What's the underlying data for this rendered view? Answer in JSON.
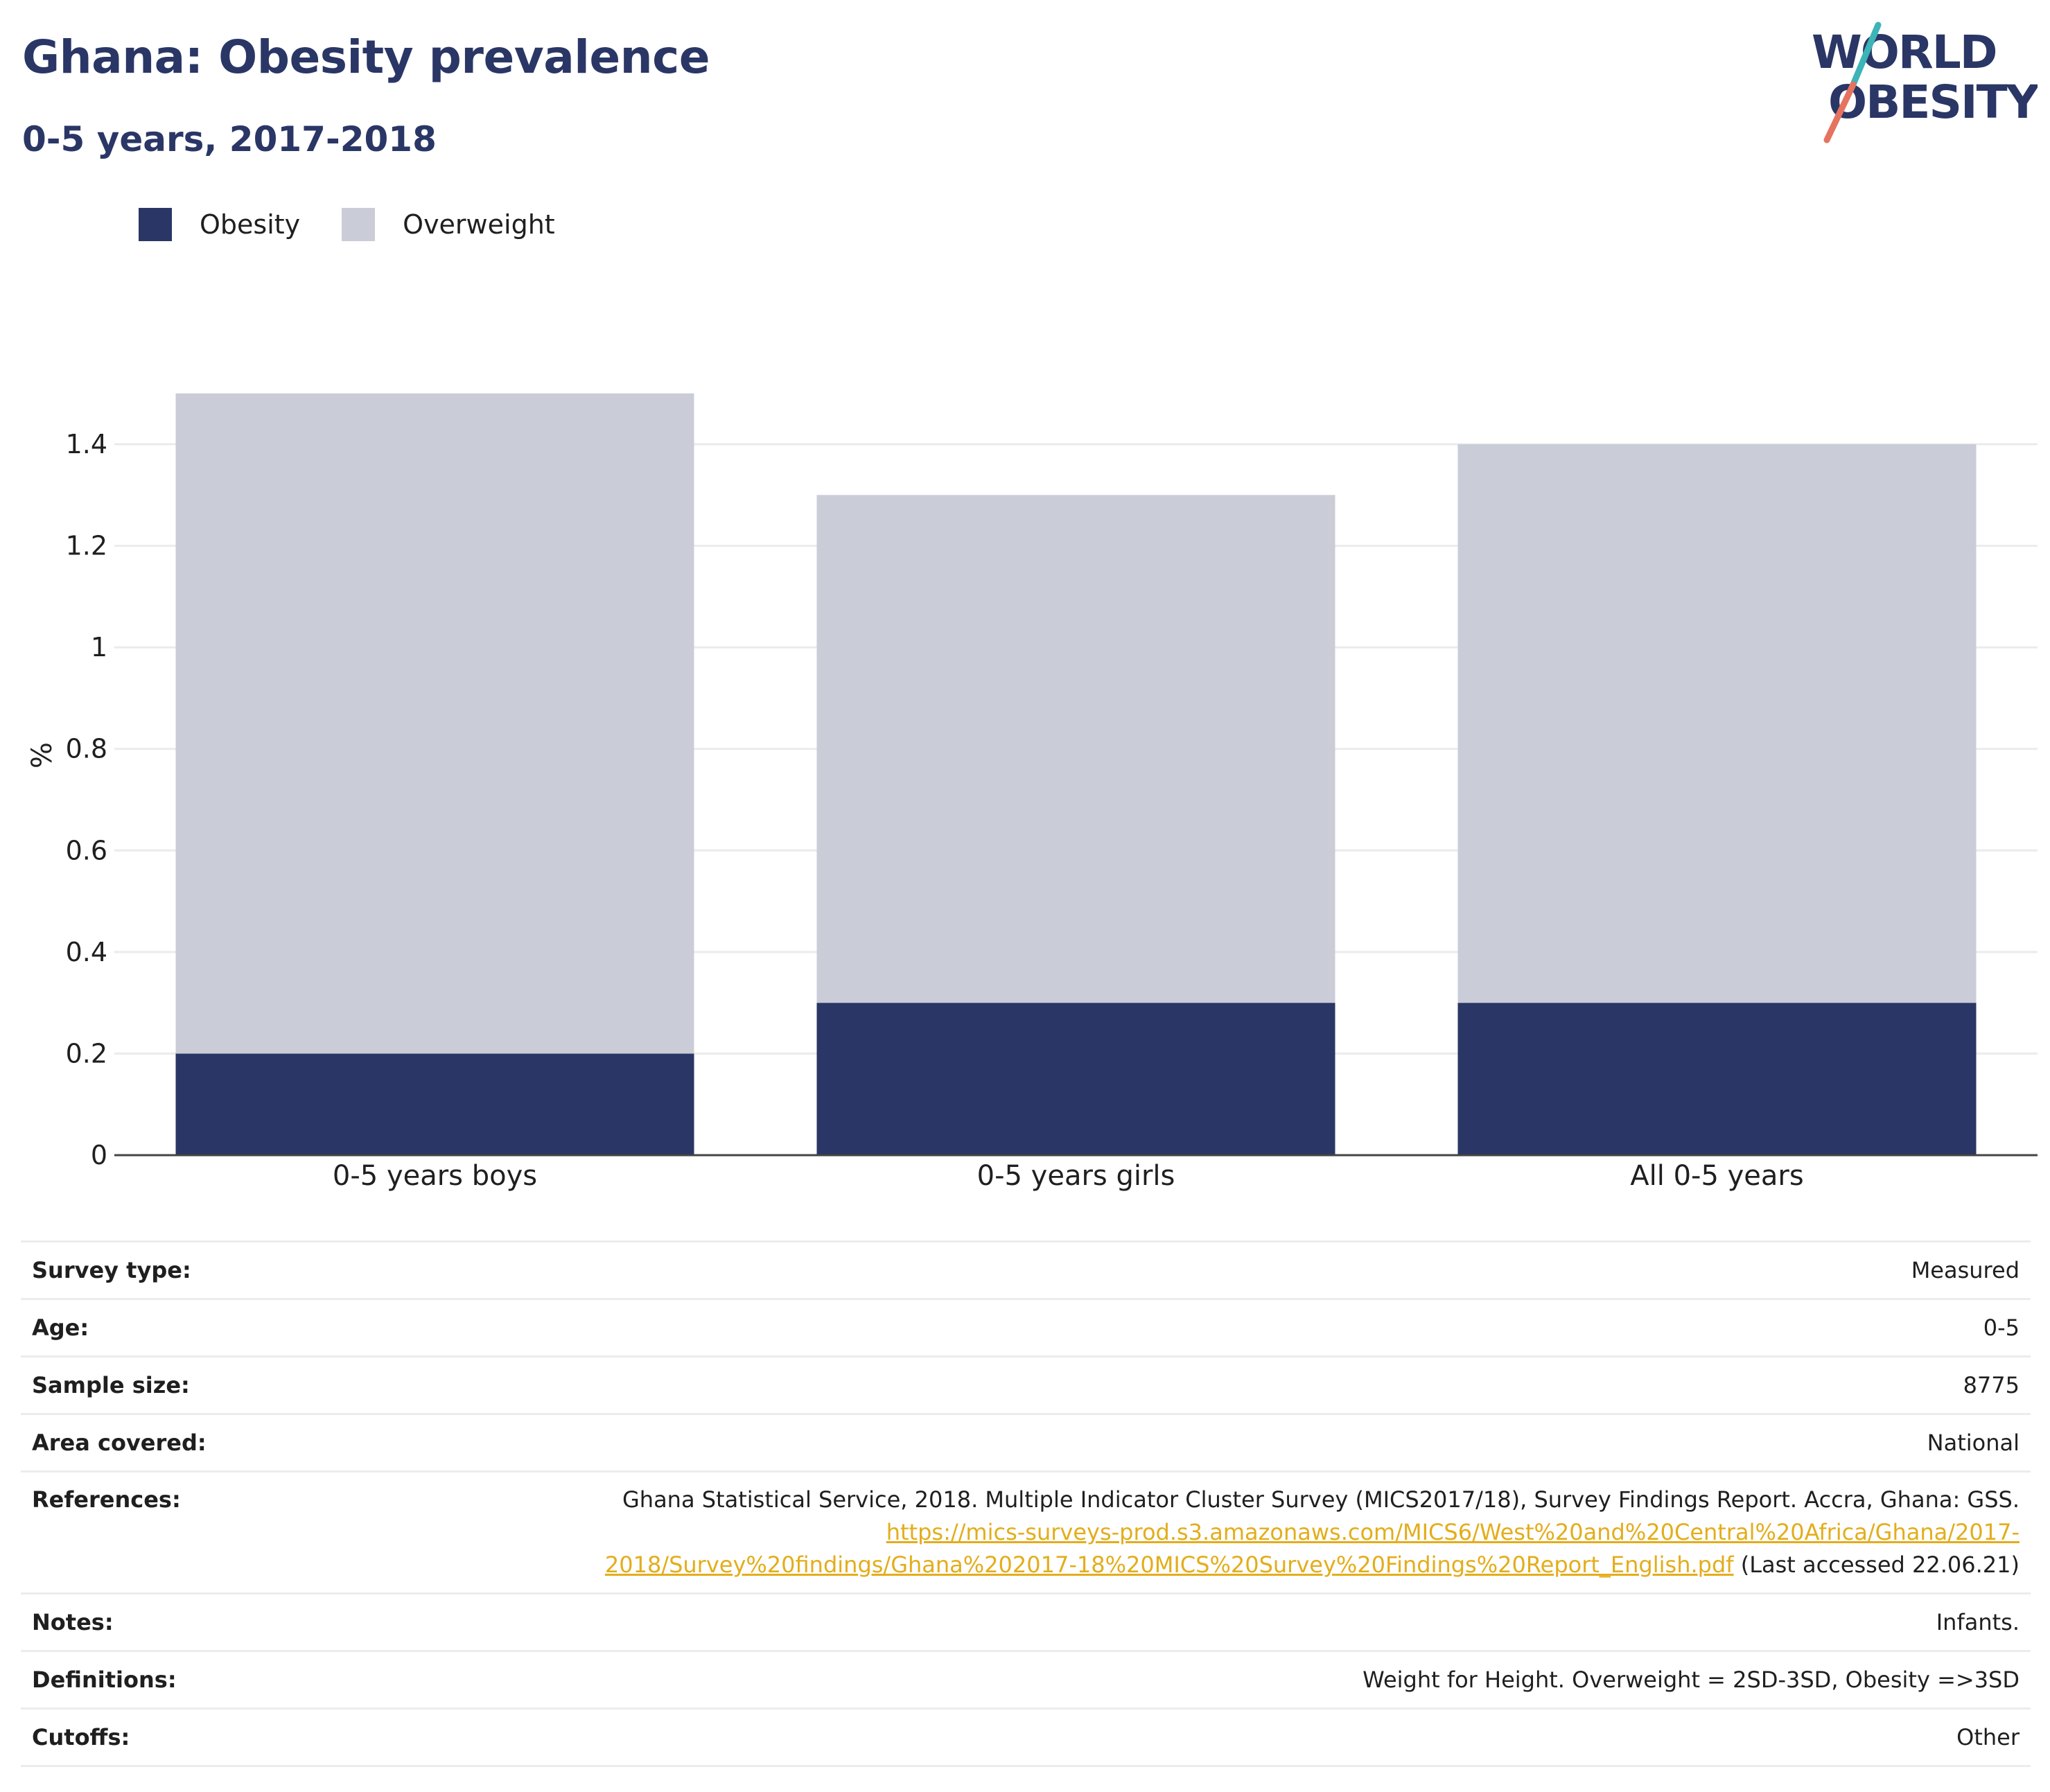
{
  "header": {
    "title": "Ghana: Obesity prevalence",
    "subtitle": "0-5 years, 2017-2018"
  },
  "logo": {
    "line1": "WORLD",
    "line2": "OBESITY",
    "colors": {
      "text": "#2a3665",
      "slash_top": "#3cb4b8",
      "slash_bottom": "#e5735f"
    }
  },
  "colors": {
    "obesity": "#2a3665",
    "overweight": "#cacdd8",
    "grid": "#ebebeb",
    "axis": "#444444",
    "link": "#e3ad1b"
  },
  "legend": [
    {
      "name": "Obesity",
      "color": "#2a3665"
    },
    {
      "name": "Overweight",
      "color": "#cacdd8"
    }
  ],
  "chart_data": {
    "type": "bar",
    "stacked": true,
    "categories": [
      "0-5 years boys",
      "0-5 years girls",
      "All 0-5 years"
    ],
    "series": [
      {
        "name": "Obesity",
        "values": [
          0.2,
          0.3,
          0.3
        ],
        "color": "#2a3665"
      },
      {
        "name": "Overweight",
        "values": [
          1.3,
          1.0,
          1.1
        ],
        "color": "#cacdd8"
      }
    ],
    "ylabel": "%",
    "ylim": [
      0,
      1.5
    ],
    "yticks": [
      0,
      0.2,
      0.4,
      0.6,
      0.8,
      1,
      1.2,
      1.4
    ],
    "ytick_labels": [
      "0",
      "0.2",
      "0.4",
      "0.6",
      "0.8",
      "1",
      "1.2",
      "1.4"
    ],
    "grid": true,
    "legend_position": "top-left"
  },
  "info": {
    "survey_type": {
      "label": "Survey type:",
      "value": "Measured"
    },
    "age": {
      "label": "Age:",
      "value": "0-5"
    },
    "sample_size": {
      "label": "Sample size:",
      "value": "8775"
    },
    "area_covered": {
      "label": "Area covered:",
      "value": "National"
    },
    "references": {
      "label": "References:",
      "text": "Ghana Statistical Service, 2018. Multiple Indicator Cluster Survey (MICS2017/18), Survey Findings Report. Accra, Ghana: GSS.",
      "link_line1": "https://mics-surveys-prod.s3.amazonaws.com/MICS6/West%20and%20Central%20Africa/Ghana/2017-",
      "link_line2": "2018/Survey%20findings/Ghana%202017-18%20MICS%20Survey%20Findings%20Report_English.pdf",
      "accessed": "(Last accessed 22.06.21)"
    },
    "notes": {
      "label": "Notes:",
      "value": "Infants."
    },
    "definitions": {
      "label": "Definitions:",
      "value": "Weight for Height. Overweight = 2SD-3SD, Obesity =>3SD"
    },
    "cutoffs": {
      "label": "Cutoffs:",
      "value": "Other"
    }
  }
}
